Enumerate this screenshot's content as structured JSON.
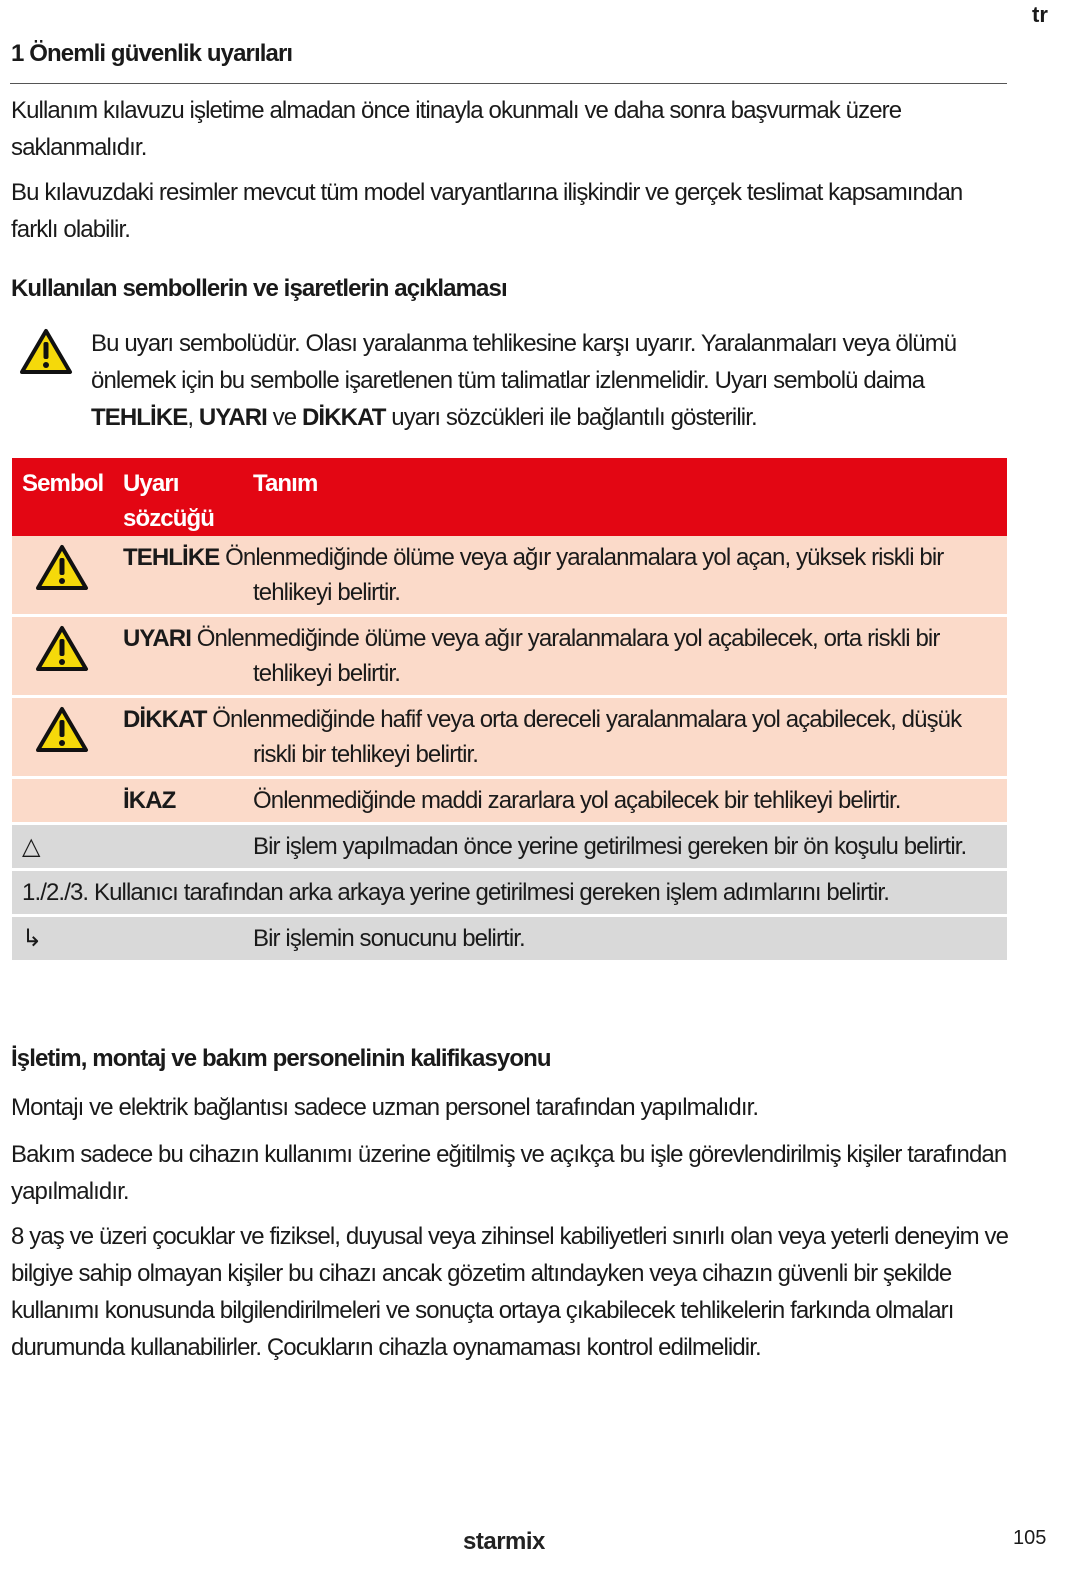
{
  "lang": "tr",
  "heading": "1 Önemli güvenlik uyarıları",
  "para1": "Kullanım kılavuzu işletime almadan önce itinayla okunmalı ve daha sonra başvurmak üzere saklanmalıdır.",
  "para2": "Bu kılavuzdaki resimler mevcut tüm model varyantlarına ilişkindir ve gerçek teslimat kapsamından farklı olabilir.",
  "symbols_heading": "Kullanılan sembollerin ve işaretlerin açıklaması",
  "intro": {
    "text1": "Bu uyarı sembolüdür. Olası yaralanma tehlikesine karşı uyarır. Yaralanmaları veya ölümü önlemek için bu sembolle işaretlenen tüm talimatlar izlenmelidir. Uyarı sembolü daima ",
    "w1": "TEHLİKE",
    "sep1": ", ",
    "w2": "UYARI",
    "sep2": " ve ",
    "w3": "DİKKAT",
    "text2": " uyarı sözcükleri ile bağlantılı gösterilir."
  },
  "table": {
    "headers": {
      "symbol": "Sembol",
      "word": "Uyarı sözcüğü",
      "desc": "Tanım"
    },
    "rows": [
      {
        "symbol": "warning-triangle",
        "word": "TEHLİKE",
        "desc": "Önlenmediğinde ölüme veya ağır yaralanmalara yol açan, yüksek riskli bir tehlikeyi belirtir."
      },
      {
        "symbol": "warning-triangle",
        "word": "UYARI",
        "desc": "Önlenmediğinde ölüme veya ağır yaralanmalara yol açabilecek, orta riskli bir tehlikeyi belirtir."
      },
      {
        "symbol": "warning-triangle",
        "word": "DİKKAT",
        "desc": "Önlenmediğinde hafif veya orta dereceli yaralanmalara yol açabilecek, düşük riskli bir tehlikeyi belirtir."
      },
      {
        "word": "İKAZ",
        "desc": "Önlenmediğinde maddi zararlara yol açabilecek bir tehlikeyi belirtir."
      },
      {
        "symbol": "△",
        "desc": "Bir işlem yapılmadan önce yerine getirilmesi gereken bir ön koşulu belirtir."
      },
      {
        "symbol": "1./2./3.",
        "desc": "Kullanıcı tarafından arka arkaya yerine getirilmesi gereken işlem adımlarını belirtir."
      },
      {
        "symbol": "↳",
        "desc": "Bir işlemin sonucunu belirtir."
      }
    ]
  },
  "qual_heading": "İşletim, montaj ve bakım personelinin kalifikasyonu",
  "para3": "Montajı ve elektrik bağlantısı sadece uzman personel tarafından yapılmalıdır.",
  "para4": "Bakım sadece bu cihazın kullanımı üzerine eğitilmiş ve açıkça bu işle görevlendirilmiş kişiler tarafından yapılmalıdır.",
  "para5": "8 yaş ve üzeri çocuklar ve fiziksel, duyusal veya zihinsel kabiliyetleri sınırlı olan veya yeterli deneyim ve bilgiye sahip olmayan kişiler bu cihazı ancak gözetim altındayken veya cihazın güvenli bir şekilde kullanımı konusunda bilgilendirilmeleri ve sonuçta ortaya çıkabilecek tehlikelerin farkında olmaları durumunda kullanabilirler. Çocukların cihazla oynamaması kontrol edilmelidir.",
  "footer": {
    "logo": "starmix",
    "page": "105"
  },
  "colors": {
    "header_red": "#e30613",
    "pink_row": "#fbdac9",
    "gray_row": "#d9d9d9",
    "warning_yellow": "#f5d90a"
  }
}
